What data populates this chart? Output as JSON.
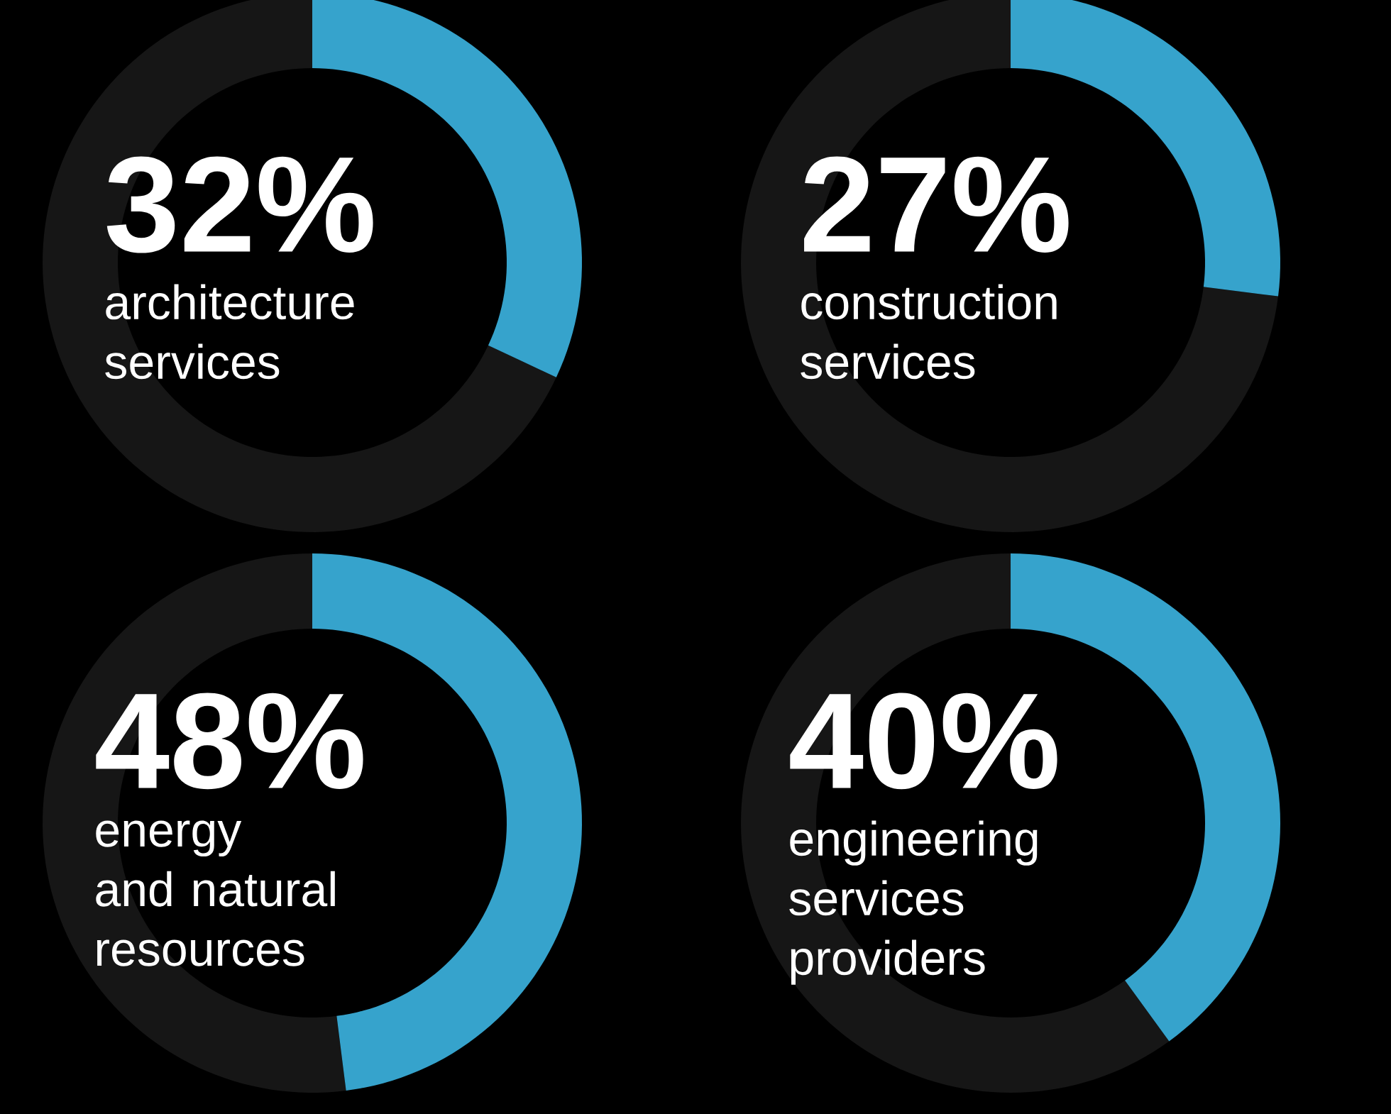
{
  "chart_data": [
    {
      "type": "donut",
      "title": "architecture services",
      "categories": [
        null,
        null
      ],
      "values": [
        32,
        68
      ],
      "colors": [
        "#36a3cc",
        "#161616"
      ],
      "annotations": [
        "32%"
      ]
    },
    {
      "type": "donut",
      "title": "construction services",
      "categories": [
        null,
        null
      ],
      "values": [
        27,
        73
      ],
      "colors": [
        "#36a3cc",
        "#161616"
      ],
      "annotations": [
        "27%"
      ]
    },
    {
      "type": "donut",
      "title": "energy and natural resources",
      "categories": [
        null,
        null
      ],
      "values": [
        48,
        52
      ],
      "colors": [
        "#36a3cc",
        "#161616"
      ],
      "annotations": [
        "48%"
      ]
    },
    {
      "type": "donut",
      "title": "engineering services providers",
      "categories": [
        null,
        null
      ],
      "values": [
        40,
        60
      ],
      "colors": [
        "#36a3cc",
        "#161616"
      ],
      "annotations": [
        "40%"
      ]
    }
  ]
}
